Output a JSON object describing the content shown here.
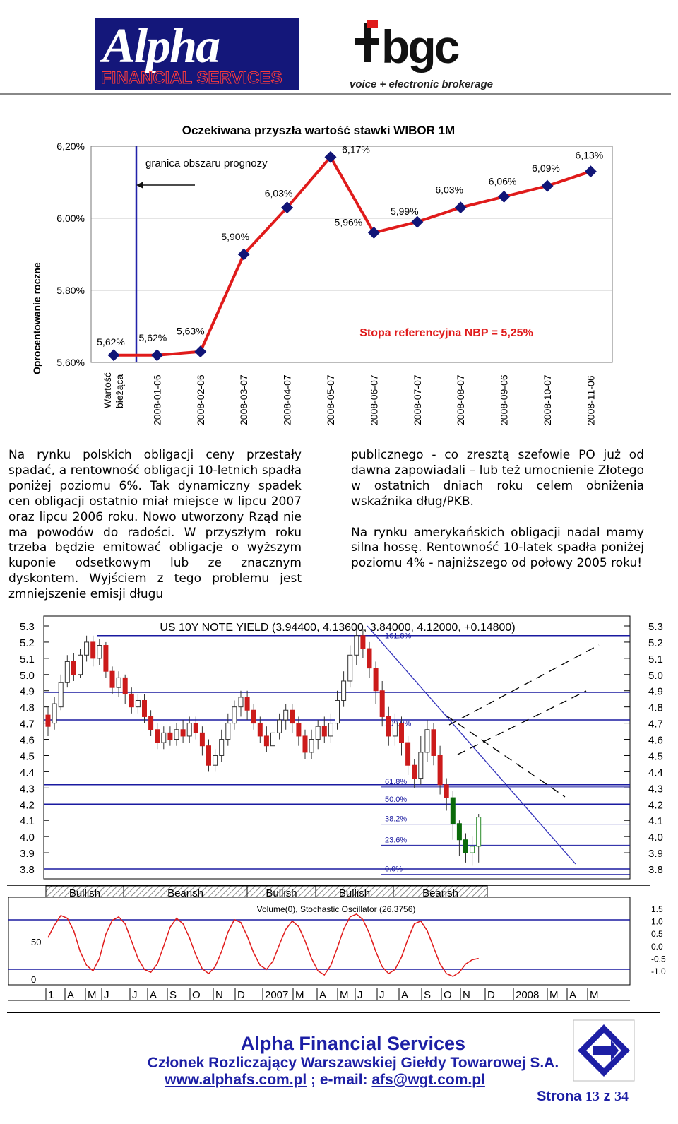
{
  "header": {
    "alpha_logo_word": "Alpha",
    "alpha_logo_sub": "FINANCIAL SERVICES",
    "bgc_logo_word": "bgc",
    "bgc_tagline": "voice + electronic brokerage"
  },
  "chart_data": [
    {
      "type": "line",
      "title": "Oczekiwana przyszła wartość stawki WIBOR 1M",
      "ylabel": "Oprocentowanie roczne",
      "xlabel": "",
      "categories": [
        "Wartość bieżąca",
        "2008-01-06",
        "2008-02-06",
        "2008-03-07",
        "2008-04-07",
        "2008-05-07",
        "2008-06-07",
        "2008-07-07",
        "2008-08-07",
        "2008-09-06",
        "2008-10-07",
        "2008-11-06"
      ],
      "series": [
        {
          "values": [
            5.62,
            5.62,
            5.63,
            5.9,
            6.03,
            6.17,
            5.96,
            5.99,
            6.03,
            6.06,
            6.09,
            6.13
          ]
        }
      ],
      "data_labels": [
        "5,62%",
        "5,62%",
        "5,63%",
        "5,90%",
        "6,03%",
        "6,17%",
        "5,96%",
        "5,99%",
        "6,03%",
        "6,06%",
        "6,09%",
        "6,13%"
      ],
      "ylim": [
        5.6,
        6.2
      ],
      "yticks": [
        "5,60%",
        "5,80%",
        "6,00%",
        "6,20%"
      ],
      "annotations": {
        "forecast_boundary": "granica obszaru prognozy",
        "reference_rate": "Stopa referencyjna NBP = 5,25%"
      },
      "colors": {
        "line": "#e01b1b",
        "marker": "#111577",
        "boundary": "#2222aa",
        "reference_text": "#e01b1b"
      },
      "grid": true
    },
    {
      "type": "candlestick",
      "title": "US 10Y NOTE YIELD (3.94400, 4.13600, 3.84000, 4.12000, +0.14800)",
      "yticks": [
        "3.8",
        "3.9",
        "4.0",
        "4.1",
        "4.2",
        "4.3",
        "4.4",
        "4.5",
        "4.6",
        "4.7",
        "4.8",
        "4.9",
        "5.0",
        "5.1",
        "5.2",
        "5.3"
      ],
      "ylim": [
        3.8,
        5.3
      ],
      "horizontal_levels": [
        5.24,
        4.89,
        4.72,
        4.32,
        4.2,
        3.8
      ],
      "fibonacci_levels": [
        "161.8%",
        "100.0%",
        "61.8%",
        "50.0%",
        "38.2%",
        "23.6%",
        "0.0%"
      ],
      "sentiment_bands": [
        "Bullish",
        "Bearish",
        "Bullish",
        "Bullish",
        "Bearish"
      ],
      "oscillator_title": "Volume(0), Stochastic Oscillator (26.3756)",
      "oscillator_yticks_left": [
        "0",
        "50"
      ],
      "oscillator_yticks_right": [
        "1.5",
        "1.0",
        "0.5",
        "0.0",
        "-0.5",
        "-1.0"
      ],
      "x_months": [
        "1",
        "A",
        "M",
        "J",
        "J",
        "A",
        "S",
        "O",
        "N",
        "D",
        "2007",
        "M",
        "A",
        "M",
        "J",
        "J",
        "A",
        "S",
        "O",
        "N",
        "D",
        "2008",
        "M",
        "A",
        "M"
      ],
      "colors": {
        "up": "#2a8a2a",
        "down": "#cc1b1b",
        "level": "#1a1aa0"
      }
    }
  ],
  "body": {
    "left_text": "Na rynku polskich obligacji ceny przestały spadać, a rentowność obligacji 10-letnich spadła poniżej poziomu 6%. Tak dynamiczny spadek cen obligacji ostatnio miał miejsce w lipcu 2007 oraz lipcu 2006 roku. Nowo utworzony Rząd nie ma powodów do radości. W przyszłym roku trzeba będzie emitować obligacje o wyższym kuponie odsetkowym lub ze znacznym dyskontem. Wyjściem z tego problemu jest zmniejszenie emisji długu",
    "right_text_1": "publicznego - co zresztą szefowie PO już od dawna zapowiadali – lub też umocnienie Złotego w ostatnich dniach roku celem obniżenia wskaźnika dług/PKB.",
    "right_text_2": "Na rynku amerykańskich obligacji nadal mamy silna hossę. Rentowność 10-latek spadła poniżej poziomu 4% - najniższego od połowy 2005 roku!"
  },
  "footer": {
    "company": "Alpha Financial Services",
    "membership": "Członek Rozliczający Warszawskiej Giełdy Towarowej S.A.",
    "website": "www.alphafs.com.pl",
    "separator": " ; e-mail: ",
    "email": "afs@wgt.com.pl",
    "page_label": "Strona",
    "page_number": "13",
    "page_of": "z",
    "page_total": "34"
  }
}
